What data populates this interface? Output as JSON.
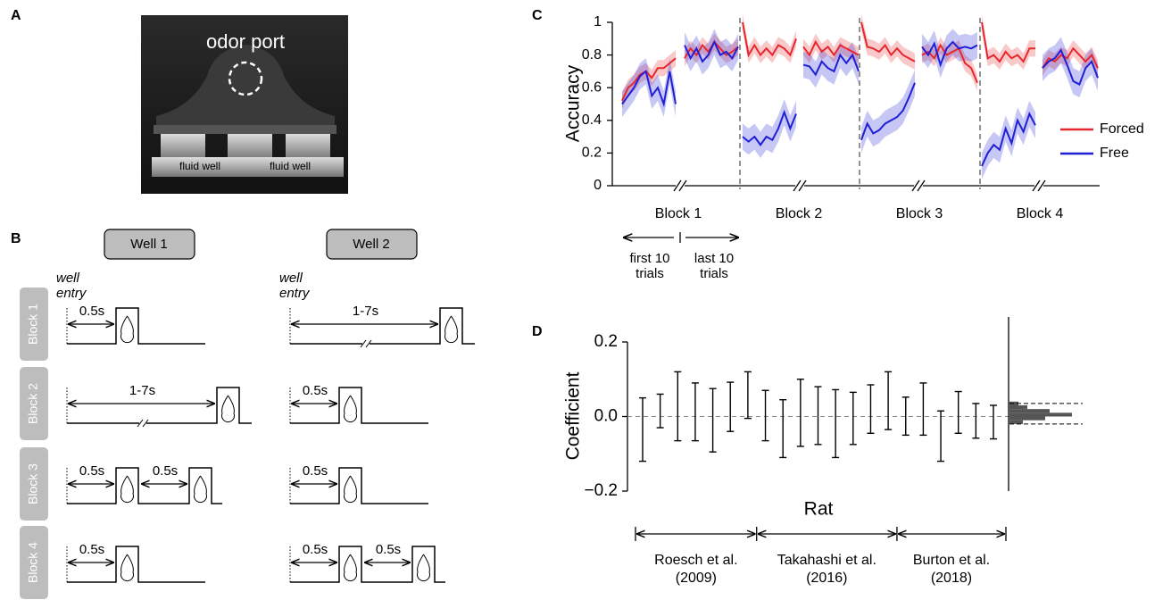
{
  "panel_a": {
    "label": "A",
    "port": "odor port",
    "wells": [
      "fluid well",
      "fluid well"
    ]
  },
  "panel_b": {
    "label": "B",
    "wells": [
      {
        "title": "Well 1",
        "entry": [
          "well",
          "entry"
        ]
      },
      {
        "title": "Well 2",
        "entry": [
          "well",
          "entry"
        ]
      }
    ],
    "blocks": [
      {
        "label": "Block 1",
        "delays": [
          [
            "0.5s"
          ],
          [
            "1-7s"
          ]
        ]
      },
      {
        "label": "Block 2",
        "delays": [
          [
            "1-7s"
          ],
          [
            "0.5s"
          ]
        ]
      },
      {
        "label": "Block 3",
        "delays": [
          [
            "0.5s",
            "0.5s"
          ],
          [
            "0.5s"
          ]
        ]
      },
      {
        "label": "Block 4",
        "delays": [
          [
            "0.5s"
          ],
          [
            "0.5s",
            "0.5s"
          ]
        ]
      }
    ]
  },
  "chart_data": [
    {
      "type": "line",
      "panel": "C",
      "ylabel": "Accuracy",
      "ylim": [
        0,
        1
      ],
      "yticks": [
        0,
        0.2,
        0.4,
        0.6,
        0.8,
        1
      ],
      "series": [
        {
          "name": "Forced",
          "color": "#e8262d",
          "error": 0.05
        },
        {
          "name": "Free",
          "color": "#1f1fd6",
          "error": 0.08
        }
      ],
      "legend": "right",
      "segment_labels": [
        [
          "first 10",
          "trials"
        ],
        [
          "last 10",
          "trials"
        ]
      ],
      "blocks": [
        {
          "label": "Block 1",
          "segments": [
            [
              [
                0.52,
                0.6,
                0.63,
                0.68,
                0.7,
                0.66,
                0.72,
                0.72,
                0.75,
                0.78
              ],
              [
                0.5,
                0.55,
                0.6,
                0.67,
                0.7,
                0.55,
                0.6,
                0.5,
                0.7,
                0.5
              ]
            ],
            [
              [
                0.78,
                0.84,
                0.8,
                0.86,
                0.82,
                0.88,
                0.84,
                0.8,
                0.82,
                0.85
              ],
              [
                0.86,
                0.78,
                0.84,
                0.76,
                0.8,
                0.88,
                0.8,
                0.82,
                0.78,
                0.85
              ]
            ]
          ]
        },
        {
          "label": "Block 2",
          "segments": [
            [
              [
                1.0,
                0.8,
                0.86,
                0.8,
                0.84,
                0.8,
                0.86,
                0.84,
                0.8,
                0.9
              ],
              [
                0.3,
                0.27,
                0.3,
                0.25,
                0.3,
                0.28,
                0.35,
                0.45,
                0.35,
                0.44
              ]
            ],
            [
              [
                0.85,
                0.8,
                0.88,
                0.82,
                0.85,
                0.8,
                0.86,
                0.84,
                0.82,
                0.8
              ],
              [
                0.74,
                0.73,
                0.68,
                0.76,
                0.72,
                0.7,
                0.8,
                0.75,
                0.8,
                0.7
              ]
            ]
          ]
        },
        {
          "label": "Block 3",
          "segments": [
            [
              [
                1.0,
                0.85,
                0.84,
                0.82,
                0.86,
                0.8,
                0.84,
                0.8,
                0.78,
                0.76
              ],
              [
                0.28,
                0.38,
                0.32,
                0.34,
                0.38,
                0.4,
                0.42,
                0.46,
                0.54,
                0.63
              ]
            ],
            [
              [
                0.8,
                0.82,
                0.78,
                0.86,
                0.8,
                0.82,
                0.84,
                0.75,
                0.72,
                0.63
              ],
              [
                0.85,
                0.8,
                0.87,
                0.74,
                0.84,
                0.88,
                0.84,
                0.85,
                0.84,
                0.86
              ]
            ]
          ]
        },
        {
          "label": "Block 4",
          "segments": [
            [
              [
                1.0,
                0.78,
                0.8,
                0.76,
                0.82,
                0.78,
                0.8,
                0.76,
                0.84,
                0.84
              ],
              [
                0.12,
                0.2,
                0.25,
                0.22,
                0.35,
                0.26,
                0.4,
                0.33,
                0.44,
                0.37
              ]
            ],
            [
              [
                0.72,
                0.78,
                0.76,
                0.8,
                0.78,
                0.84,
                0.8,
                0.76,
                0.8,
                0.72
              ],
              [
                0.72,
                0.76,
                0.78,
                0.83,
                0.74,
                0.64,
                0.62,
                0.72,
                0.76,
                0.66
              ]
            ]
          ]
        }
      ]
    },
    {
      "type": "errorbar",
      "panel": "D",
      "ylabel": "Coefficient",
      "xlabel": "Rat",
      "ylim": [
        -0.2,
        0.2
      ],
      "yticks": [
        {
          "value": -0.2,
          "label": "−0.2"
        },
        {
          "value": 0,
          "label": "0.0"
        },
        0.2
      ],
      "groups": [
        {
          "name": "Roesch et al.",
          "year": "(2009)",
          "low": [
            -0.12,
            -0.03,
            -0.065,
            -0.065,
            -0.095,
            -0.04,
            -0.005
          ],
          "high": [
            0.05,
            0.06,
            0.12,
            0.09,
            0.075,
            0.092,
            0.12
          ]
        },
        {
          "name": "Takahashi et al.",
          "year": "(2016)",
          "low": [
            -0.065,
            -0.11,
            -0.08,
            -0.075,
            -0.11,
            -0.075,
            -0.045,
            -0.035
          ],
          "high": [
            0.07,
            0.045,
            0.1,
            0.08,
            0.072,
            0.065,
            0.085,
            0.12
          ]
        },
        {
          "name": "Burton et al.",
          "year": "(2018)",
          "low": [
            -0.05,
            -0.05,
            -0.12,
            -0.045,
            -0.058,
            -0.06
          ],
          "high": [
            0.052,
            0.09,
            0.015,
            0.067,
            0.035,
            0.03
          ]
        }
      ],
      "null_distribution": {
        "bins": [
          -0.02,
          -0.01,
          0,
          0.01,
          0.02,
          0.03,
          0.04
        ],
        "counts": [
          3,
          8,
          14,
          9,
          4,
          2
        ],
        "bounds": [
          -0.02,
          0.035
        ]
      }
    }
  ]
}
